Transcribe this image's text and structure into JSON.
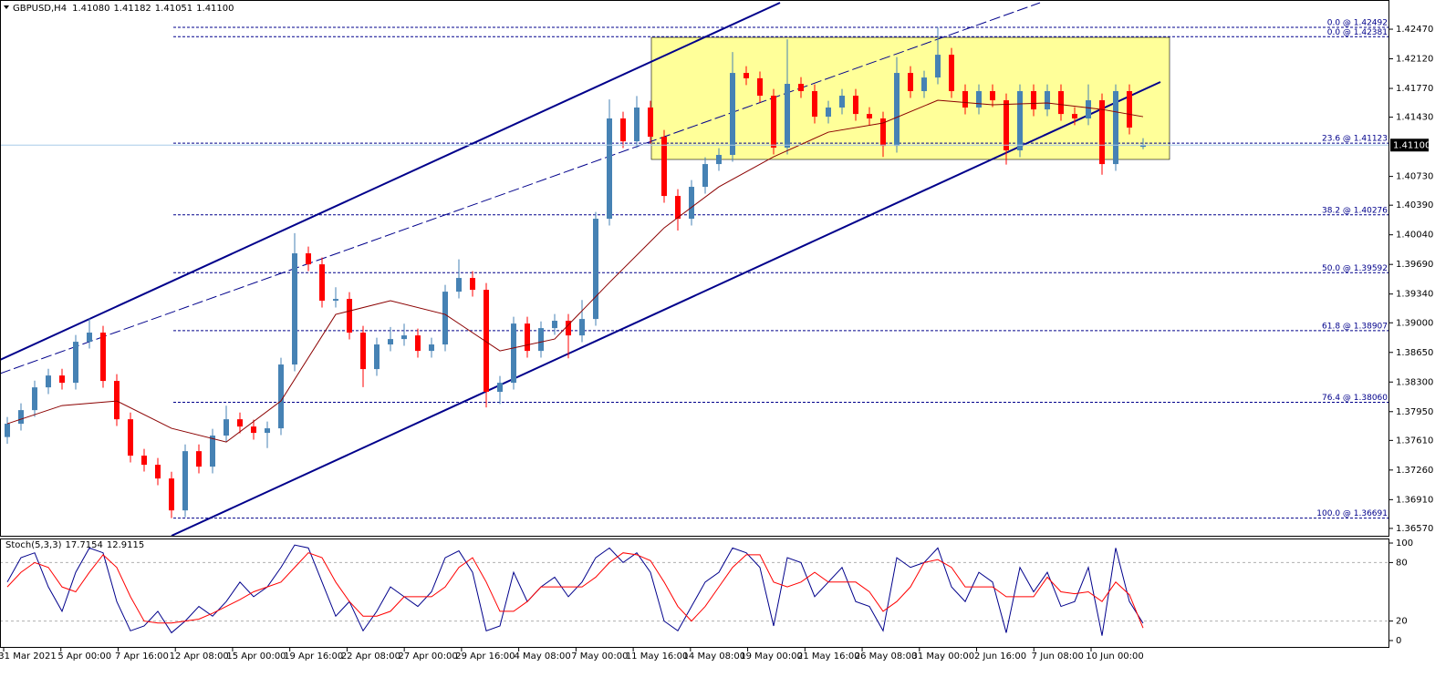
{
  "chart_data": {
    "type": "candlestick",
    "title": "GBPUSD,H4",
    "title_values": [
      "1.41080",
      "1.41182",
      "1.41051",
      "1.41100"
    ],
    "x_labels": [
      "31 Mar 2021",
      "5 Apr 00:00",
      "7 Apr 16:00",
      "12 Apr 08:00",
      "15 Apr 00:00",
      "19 Apr 16:00",
      "22 Apr 08:00",
      "27 Apr 00:00",
      "29 Apr 16:00",
      "4 May 08:00",
      "7 May 00:00",
      "11 May 16:00",
      "14 May 08:00",
      "19 May 00:00",
      "21 May 16:00",
      "26 May 08:00",
      "31 May 00:00",
      "2 Jun 16:00",
      "7 Jun 08:00",
      "10 Jun 00:00"
    ],
    "open": [
      1.3765,
      1.37807,
      1.37968,
      1.38237,
      1.38377,
      1.38291,
      1.38776,
      1.38884,
      1.38313,
      1.3786,
      1.3743,
      1.37322,
      1.3716,
      1.36783,
      1.37483,
      1.373,
      1.37667,
      1.3786,
      1.37774,
      1.37699,
      1.37753,
      1.38507,
      1.39821,
      1.39691,
      1.39261,
      1.39282,
      1.38884,
      1.38453,
      1.38744,
      1.38808,
      1.38851,
      1.38668,
      1.38744,
      1.39368,
      1.3953,
      1.3939,
      1.38184,
      1.38291,
      1.38991,
      1.38668,
      1.38937,
      1.39024,
      1.38851,
      1.39045,
      1.4023,
      1.41415,
      1.41145,
      1.41544,
      1.41199,
      1.40499,
      1.4023,
      1.40607,
      1.40876,
      1.40984,
      1.41953,
      1.4189,
      1.41684,
      1.4107,
      1.41824,
      1.41738,
      1.41436,
      1.41544,
      1.41684,
      1.41468,
      1.41415,
      1.41091,
      1.41953,
      1.41738,
      1.41899,
      1.42168,
      1.41738,
      1.41544,
      1.41738,
      1.4163,
      1.41038,
      1.41738,
      1.41522,
      1.41738,
      1.41468,
      1.41415,
      1.4163,
      1.40876,
      1.41738,
      1.4108
    ],
    "high": [
      1.37887,
      1.38048,
      1.38317,
      1.38457,
      1.38457,
      1.38856,
      1.3905,
      1.38964,
      1.38393,
      1.3794,
      1.3751,
      1.37402,
      1.3724,
      1.37563,
      1.37563,
      1.37747,
      1.3802,
      1.3794,
      1.37854,
      1.37833,
      1.38587,
      1.4006,
      1.39901,
      1.39771,
      1.3942,
      1.39362,
      1.38964,
      1.38824,
      1.3895,
      1.3899,
      1.38931,
      1.38824,
      1.39448,
      1.3975,
      1.3961,
      1.3947,
      1.38371,
      1.39071,
      1.39071,
      1.39017,
      1.39104,
      1.39104,
      1.3927,
      1.4031,
      1.4164,
      1.41495,
      1.4168,
      1.41624,
      1.41279,
      1.40579,
      1.40687,
      1.40956,
      1.41064,
      1.422,
      1.42033,
      1.4197,
      1.41764,
      1.4235,
      1.41904,
      1.41818,
      1.41624,
      1.41764,
      1.41764,
      1.41548,
      1.41495,
      1.4214,
      1.42033,
      1.41979,
      1.42492,
      1.42248,
      1.41818,
      1.41818,
      1.41818,
      1.4171,
      1.41818,
      1.41818,
      1.41818,
      1.41818,
      1.41548,
      1.41818,
      1.4171,
      1.41818,
      1.41818,
      1.41182
    ],
    "low": [
      1.3757,
      1.37727,
      1.37888,
      1.38157,
      1.38211,
      1.38211,
      1.38696,
      1.38233,
      1.3778,
      1.3735,
      1.37242,
      1.3708,
      1.36691,
      1.36703,
      1.3722,
      1.3722,
      1.37587,
      1.37694,
      1.37619,
      1.3752,
      1.37673,
      1.38427,
      1.39611,
      1.39181,
      1.39181,
      1.38804,
      1.3824,
      1.38373,
      1.38664,
      1.38728,
      1.38588,
      1.38588,
      1.38664,
      1.39288,
      1.3931,
      1.38,
      1.3804,
      1.38211,
      1.38588,
      1.38588,
      1.38857,
      1.3858,
      1.38771,
      1.38965,
      1.4015,
      1.41065,
      1.41065,
      1.41119,
      1.40419,
      1.4009,
      1.4015,
      1.40527,
      1.40796,
      1.40904,
      1.4181,
      1.41604,
      1.4099,
      1.4099,
      1.41658,
      1.41356,
      1.41356,
      1.41464,
      1.41388,
      1.41335,
      1.4096,
      1.41011,
      1.41658,
      1.41658,
      1.41819,
      1.41658,
      1.41464,
      1.41464,
      1.4155,
      1.4087,
      1.40958,
      1.41442,
      1.41442,
      1.41388,
      1.41335,
      1.41335,
      1.4075,
      1.40796,
      1.41227,
      1.41051
    ],
    "close": [
      1.37807,
      1.37968,
      1.38237,
      1.38377,
      1.38291,
      1.38776,
      1.38884,
      1.38313,
      1.3786,
      1.3743,
      1.37322,
      1.3716,
      1.36783,
      1.37483,
      1.373,
      1.37667,
      1.3786,
      1.37774,
      1.37699,
      1.37753,
      1.38507,
      1.39821,
      1.39691,
      1.39261,
      1.39282,
      1.38884,
      1.38453,
      1.38744,
      1.38808,
      1.38851,
      1.38668,
      1.38744,
      1.39368,
      1.3953,
      1.3939,
      1.38184,
      1.38291,
      1.38991,
      1.38668,
      1.38937,
      1.39024,
      1.38851,
      1.39045,
      1.4023,
      1.41415,
      1.41145,
      1.41544,
      1.41199,
      1.40499,
      1.4023,
      1.40607,
      1.40876,
      1.40984,
      1.41953,
      1.4189,
      1.41684,
      1.4107,
      1.41824,
      1.41738,
      1.41436,
      1.41544,
      1.41684,
      1.41468,
      1.41415,
      1.41091,
      1.41953,
      1.41738,
      1.41899,
      1.42168,
      1.41738,
      1.41544,
      1.41738,
      1.4163,
      1.41038,
      1.41738,
      1.41522,
      1.41738,
      1.41468,
      1.41415,
      1.4163,
      1.40876,
      1.41738,
      1.41307,
      1.411
    ],
    "colors": {
      "up": "#4682b4",
      "down": "#ff0000"
    },
    "ylim": [
      1.36483,
      1.42815
    ],
    "yticks": [
      {
        "value": 1.4247,
        "label": "1.42470"
      },
      {
        "value": 1.4212,
        "label": "1.42120"
      },
      {
        "value": 1.4177,
        "label": "1.41770"
      },
      {
        "value": 1.4143,
        "label": "1.41430"
      },
      {
        "value": 1.4073,
        "label": "1.40730"
      },
      {
        "value": 1.4039,
        "label": "1.40390"
      },
      {
        "value": 1.4004,
        "label": "1.40040"
      },
      {
        "value": 1.3969,
        "label": "1.39690"
      },
      {
        "value": 1.3934,
        "label": "1.39340"
      },
      {
        "value": 1.39,
        "label": "1.39000"
      },
      {
        "value": 1.3865,
        "label": "1.38650"
      },
      {
        "value": 1.383,
        "label": "1.38300"
      },
      {
        "value": 1.3795,
        "label": "1.37950"
      },
      {
        "value": 1.3761,
        "label": "1.37610"
      },
      {
        "value": 1.3726,
        "label": "1.37260"
      },
      {
        "value": 1.3691,
        "label": "1.36910"
      },
      {
        "value": 1.3657,
        "label": "1.36570"
      }
    ],
    "ma": {
      "color": "#8b0000",
      "x": [
        0,
        4,
        8,
        12,
        16,
        20,
        24,
        28,
        32,
        36,
        40,
        44,
        48,
        52,
        56,
        60,
        64,
        68,
        72,
        76,
        80,
        83
      ],
      "values": [
        1.37807,
        1.38022,
        1.38076,
        1.37753,
        1.37591,
        1.38076,
        1.39099,
        1.39261,
        1.39099,
        1.38668,
        1.38808,
        1.39476,
        1.40122,
        1.40607,
        1.40962,
        1.41253,
        1.41361,
        1.4163,
        1.41576,
        1.41598,
        1.41522,
        1.41436
      ]
    },
    "fib_levels": [
      {
        "label": "0.0 @ 1.42492",
        "value": 1.42492
      },
      {
        "label": "0.0 @ 1.42381",
        "value": 1.42381
      },
      {
        "label": "23.6 @ 1.41123",
        "value": 1.41123
      },
      {
        "label": "38.2 @ 1.40276",
        "value": 1.40276
      },
      {
        "label": "50.0 @ 1.39592",
        "value": 1.39592
      },
      {
        "label": "61.8 @ 1.38907",
        "value": 1.38907
      },
      {
        "label": "76.4 @ 1.38060",
        "value": 1.3806
      },
      {
        "label": "100.0 @ 1.36691",
        "value": 1.36691
      }
    ],
    "fib_color": "#00008b",
    "stoch": {
      "title": "Stoch(5,3,3)",
      "ylim": [
        0,
        100
      ],
      "yticks": [
        0,
        20,
        80,
        100
      ],
      "series": [
        {
          "color": "#00008b",
          "values": [
            60,
            85,
            90,
            55,
            30,
            70,
            95,
            90,
            40,
            10,
            15,
            30,
            8,
            20,
            35,
            25,
            40,
            60,
            45,
            55,
            75,
            98,
            95,
            60,
            25,
            40,
            10,
            30,
            55,
            45,
            35,
            50,
            85,
            92,
            70,
            10,
            15,
            70,
            40,
            55,
            65,
            45,
            60,
            85,
            95,
            80,
            90,
            70,
            20,
            10,
            35,
            60,
            70,
            95,
            90,
            75,
            15,
            85,
            80,
            45,
            60,
            75,
            40,
            35,
            10,
            85,
            75,
            80,
            95,
            55,
            40,
            70,
            60,
            8,
            75,
            50,
            70,
            35,
            40,
            75,
            5,
            95,
            40,
            17.7154
          ]
        },
        {
          "color": "#ff0000",
          "values": [
            55,
            70,
            80,
            75,
            55,
            50,
            70,
            88,
            75,
            45,
            20,
            18,
            18,
            20,
            22,
            28,
            35,
            42,
            50,
            55,
            60,
            75,
            90,
            85,
            60,
            40,
            25,
            25,
            30,
            45,
            45,
            45,
            55,
            75,
            85,
            60,
            30,
            30,
            40,
            55,
            55,
            55,
            55,
            65,
            80,
            90,
            88,
            82,
            60,
            35,
            20,
            35,
            55,
            75,
            88,
            88,
            60,
            55,
            60,
            70,
            60,
            60,
            60,
            50,
            30,
            40,
            55,
            80,
            83,
            75,
            55,
            55,
            55,
            45,
            45,
            45,
            65,
            50,
            48,
            50,
            40,
            60,
            47,
            12.9115
          ]
        }
      ]
    }
  }
}
